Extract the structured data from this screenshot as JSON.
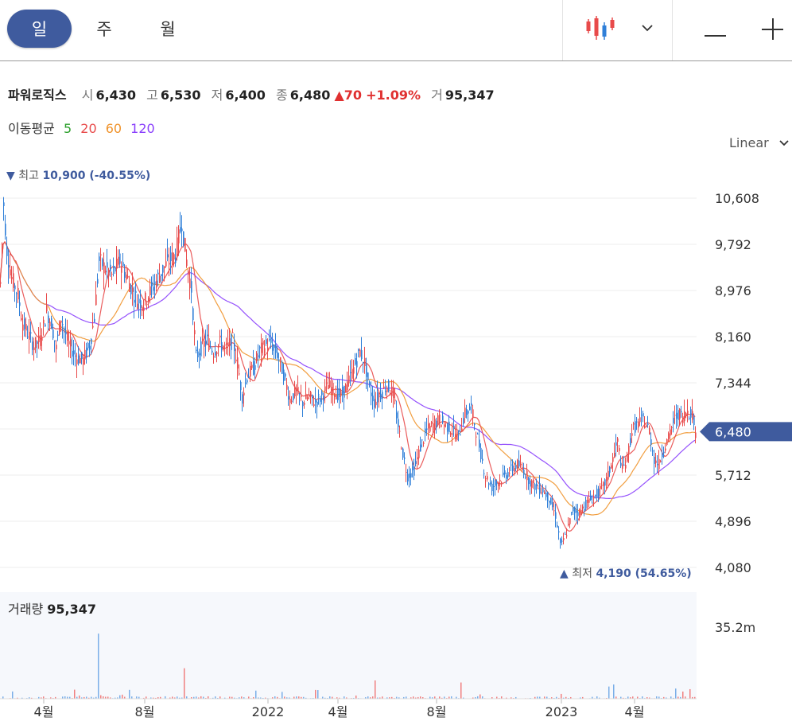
{
  "toolbar": {
    "periods": [
      {
        "label": "일",
        "active": true
      },
      {
        "label": "주",
        "active": false
      },
      {
        "label": "월",
        "active": false
      }
    ],
    "chart_type_icon": "candlestick-icon",
    "dropdown_icon": "chevron-down-icon",
    "zoom_out_icon": "minus-icon",
    "zoom_in_icon": "plus-icon"
  },
  "stock": {
    "name": "파워로직스",
    "open_label": "시",
    "open": "6,430",
    "high_label": "고",
    "high": "6,530",
    "low_label": "저",
    "low": "6,400",
    "close_label": "종",
    "close": "6,480",
    "change": "70",
    "change_pct": "+1.09%",
    "volume_label": "거",
    "volume": "95,347"
  },
  "moving_average": {
    "label": "이동평균",
    "periods": [
      {
        "label": "5",
        "color": "#2ca02c"
      },
      {
        "label": "20",
        "color": "#e84a4a"
      },
      {
        "label": "60",
        "color": "#f0932b"
      },
      {
        "label": "120",
        "color": "#8a3ffc"
      }
    ]
  },
  "scale": {
    "label": "Linear"
  },
  "chart_data": {
    "type": "candlestick",
    "y_ticks": [
      "10,608",
      "9,792",
      "8,976",
      "8,160",
      "7,344",
      "5,712",
      "4,896",
      "4,080"
    ],
    "y_tick_values": [
      10608,
      9792,
      8976,
      8160,
      7344,
      5712,
      4896,
      4080
    ],
    "x_ticks": [
      "4월",
      "8월",
      "2022",
      "4월",
      "8월",
      "2023",
      "4월"
    ],
    "current_price": {
      "label": "6,480",
      "value": 6480
    },
    "high_marker": {
      "label": "최고",
      "value": "10,900 (-40.55%)"
    },
    "low_marker": {
      "label": "최저",
      "value": "4,190 (54.65%)"
    },
    "up_color": "#e84a4a",
    "down_color": "#2f7fd8",
    "volume_axis_label": "35.2m",
    "price_key_points": [
      [
        0,
        9100
      ],
      [
        4,
        10500
      ],
      [
        8,
        9700
      ],
      [
        14,
        9200
      ],
      [
        22,
        8900
      ],
      [
        28,
        8400
      ],
      [
        35,
        8200
      ],
      [
        42,
        8000
      ],
      [
        50,
        8100
      ],
      [
        58,
        8600
      ],
      [
        64,
        8400
      ],
      [
        70,
        7950
      ],
      [
        76,
        8500
      ],
      [
        85,
        8050
      ],
      [
        95,
        7800
      ],
      [
        104,
        7750
      ],
      [
        112,
        8000
      ],
      [
        118,
        8500
      ],
      [
        124,
        9500
      ],
      [
        130,
        9400
      ],
      [
        140,
        9250
      ],
      [
        150,
        9500
      ],
      [
        158,
        9250
      ],
      [
        165,
        9000
      ],
      [
        172,
        8800
      ],
      [
        180,
        8750
      ],
      [
        188,
        8950
      ],
      [
        196,
        9150
      ],
      [
        204,
        9350
      ],
      [
        212,
        9500
      ],
      [
        220,
        9600
      ],
      [
        228,
        10200
      ],
      [
        234,
        9500
      ],
      [
        240,
        9000
      ],
      [
        246,
        7800
      ],
      [
        252,
        7950
      ],
      [
        260,
        8100
      ],
      [
        268,
        7900
      ],
      [
        276,
        8050
      ],
      [
        284,
        7950
      ],
      [
        292,
        8100
      ],
      [
        298,
        7700
      ],
      [
        304,
        7100
      ],
      [
        310,
        7450
      ],
      [
        318,
        7600
      ],
      [
        326,
        7900
      ],
      [
        332,
        8000
      ],
      [
        340,
        8050
      ],
      [
        348,
        7850
      ],
      [
        356,
        7500
      ],
      [
        364,
        7050
      ],
      [
        372,
        7200
      ],
      [
        380,
        7000
      ],
      [
        388,
        7100
      ],
      [
        396,
        7000
      ],
      [
        404,
        7100
      ],
      [
        412,
        7300
      ],
      [
        420,
        7200
      ],
      [
        428,
        7100
      ],
      [
        436,
        7300
      ],
      [
        444,
        7600
      ],
      [
        452,
        7900
      ],
      [
        458,
        7700
      ],
      [
        464,
        7250
      ],
      [
        470,
        7000
      ],
      [
        478,
        7150
      ],
      [
        486,
        7300
      ],
      [
        494,
        7150
      ],
      [
        500,
        6600
      ],
      [
        506,
        6100
      ],
      [
        512,
        5700
      ],
      [
        520,
        5800
      ],
      [
        528,
        6200
      ],
      [
        536,
        6500
      ],
      [
        544,
        6600
      ],
      [
        552,
        6700
      ],
      [
        560,
        6600
      ],
      [
        568,
        6500
      ],
      [
        576,
        6400
      ],
      [
        584,
        6800
      ],
      [
        592,
        6900
      ],
      [
        598,
        6500
      ],
      [
        604,
        6100
      ],
      [
        610,
        5700
      ],
      [
        618,
        5500
      ],
      [
        626,
        5600
      ],
      [
        634,
        5700
      ],
      [
        642,
        5800
      ],
      [
        650,
        5900
      ],
      [
        658,
        5800
      ],
      [
        666,
        5600
      ],
      [
        674,
        5500
      ],
      [
        682,
        5450
      ],
      [
        690,
        5300
      ],
      [
        698,
        5000
      ],
      [
        705,
        4450
      ],
      [
        712,
        4700
      ],
      [
        720,
        5100
      ],
      [
        728,
        5050
      ],
      [
        736,
        5200
      ],
      [
        744,
        5300
      ],
      [
        752,
        5400
      ],
      [
        758,
        5500
      ],
      [
        764,
        5700
      ],
      [
        770,
        6000
      ],
      [
        776,
        6300
      ],
      [
        782,
        5800
      ],
      [
        788,
        6000
      ],
      [
        794,
        6500
      ],
      [
        800,
        6600
      ],
      [
        808,
        6700
      ],
      [
        816,
        6500
      ],
      [
        822,
        6000
      ],
      [
        828,
        5900
      ],
      [
        834,
        6200
      ],
      [
        840,
        6350
      ],
      [
        846,
        6650
      ],
      [
        852,
        6800
      ],
      [
        858,
        6750
      ],
      [
        864,
        6850
      ],
      [
        870,
        6800
      ],
      [
        874,
        6480
      ]
    ],
    "volume_spikes": [
      [
        123,
        32
      ],
      [
        230,
        15
      ],
      [
        322,
        4
      ],
      [
        470,
        9
      ],
      [
        580,
        8
      ],
      [
        765,
        6
      ],
      [
        770,
        7
      ],
      [
        848,
        5
      ]
    ]
  },
  "volume": {
    "label": "거래량",
    "value": "95,347"
  }
}
